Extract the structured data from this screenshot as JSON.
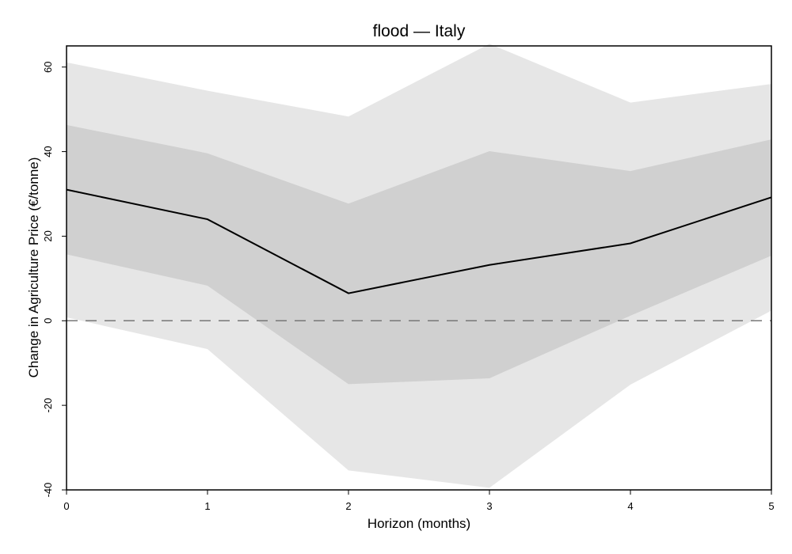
{
  "chart_data": {
    "type": "line",
    "title": "flood — Italy",
    "xlabel": "Horizon (months)",
    "ylabel": "Change in Agriculture Price (€/tonne)",
    "x": [
      0,
      1,
      2,
      3,
      4,
      5
    ],
    "xlim": [
      0,
      5
    ],
    "ylim": [
      -40,
      65
    ],
    "xticks": [
      "0",
      "1",
      "2",
      "3",
      "4",
      "5"
    ],
    "yticks": [
      "-40",
      "-20",
      "0",
      "20",
      "40",
      "60"
    ],
    "series": [
      {
        "estimate": [
          31,
          24,
          6.5,
          13.2,
          18.3,
          29.2
        ],
        "band_inner_lower": [
          15.7,
          8.3,
          -15,
          -13.6,
          1.2,
          15.4
        ],
        "band_inner_upper": [
          46.3,
          39.6,
          27.7,
          40.1,
          35.4,
          42.9
        ],
        "band_outer_lower": [
          0.8,
          -6.7,
          -35.4,
          -39.5,
          -15.1,
          2.4
        ],
        "band_outer_upper": [
          61.1,
          54.4,
          48.3,
          65.5,
          51.6,
          56
        ]
      }
    ],
    "zero_line": 0,
    "grid": false,
    "colors": {
      "line": "#000000",
      "band_inner": "#d0d0d0",
      "band_outer": "#e6e6e6",
      "zero_line": "#777777"
    }
  }
}
